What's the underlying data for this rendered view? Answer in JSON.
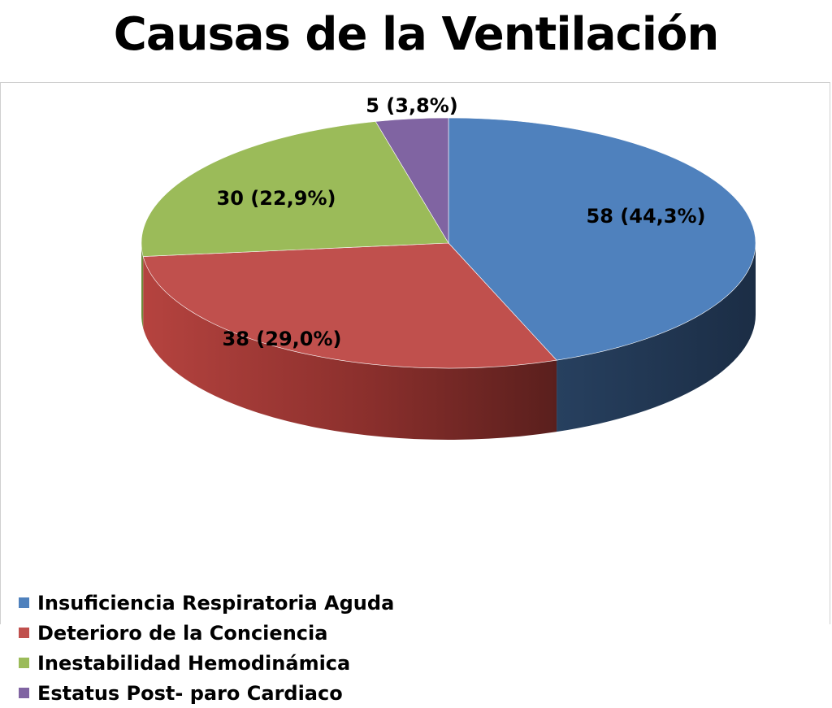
{
  "page": {
    "title": "Causas de la Ventilación"
  },
  "chart_data": {
    "type": "pie",
    "style": "3d",
    "title": "",
    "slices": [
      {
        "name": "Insuficiencia Respiratoria Aguda",
        "value": 58,
        "percent": 44.3,
        "label": "58 (44,3%)",
        "color": "#4F81BD",
        "side_color": "#243C5B"
      },
      {
        "name": "Deterioro de la Conciencia",
        "value": 38,
        "percent": 29.0,
        "label": "38 (29,0%)",
        "color": "#C0504D",
        "side_color": "#8C3331"
      },
      {
        "name": "Inestabilidad Hemodinámica",
        "value": 30,
        "percent": 22.9,
        "label": "30 (22,9%)",
        "color": "#9BBB59",
        "side_color": "#6E8A3A"
      },
      {
        "name": "Estatus Post- paro Cardiaco",
        "value": 5,
        "percent": 3.8,
        "label": "5 (3,8%)",
        "color": "#8064A2",
        "side_color": "#5A4577"
      }
    ],
    "legend_position": "bottom-left"
  }
}
